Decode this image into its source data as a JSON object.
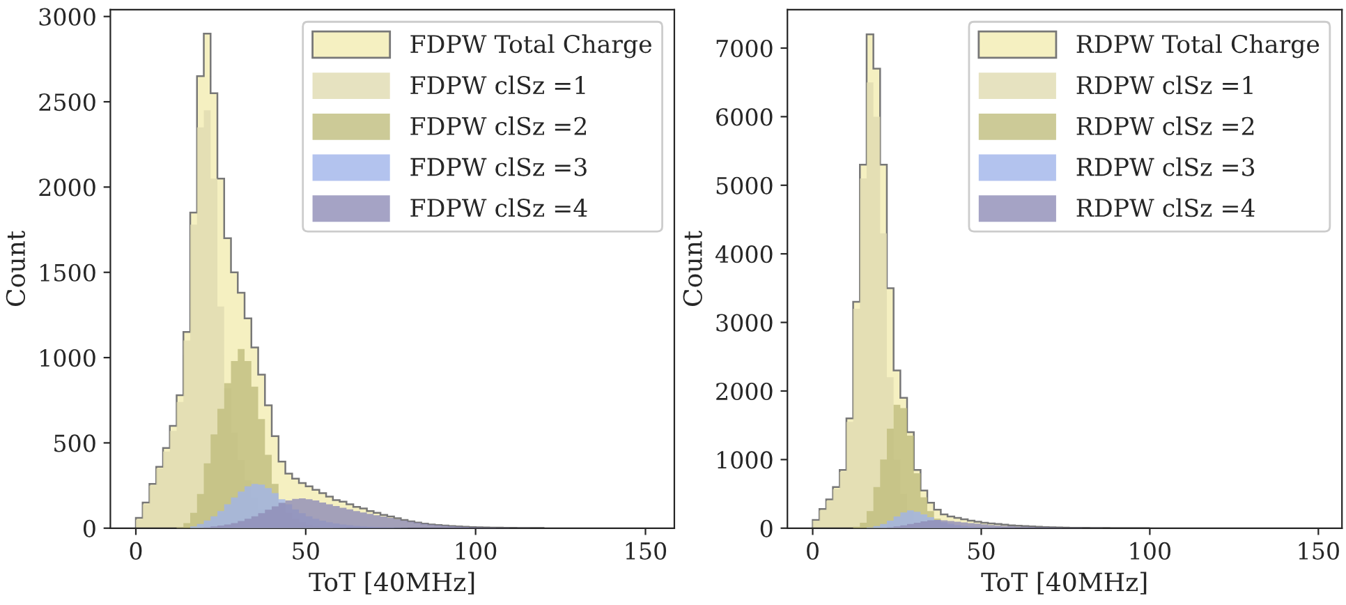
{
  "chart_data": [
    {
      "type": "histogram",
      "xlabel": "ToT [40MHz]",
      "ylabel": "Count",
      "xlim": [
        -7.5,
        158.5
      ],
      "ylim": [
        0,
        3040
      ],
      "xticks": [
        0,
        50,
        100,
        150
      ],
      "yticks": [
        0,
        500,
        1000,
        1500,
        2000,
        2500,
        3000
      ],
      "grid": false,
      "legend": "top right",
      "bins": [
        0,
        2,
        4,
        6,
        8,
        10,
        12,
        14,
        16,
        18,
        20,
        22,
        24,
        26,
        28,
        30,
        32,
        34,
        36,
        38,
        40,
        42,
        44,
        46,
        48,
        50,
        52,
        54,
        56,
        58,
        60,
        62,
        64,
        66,
        68,
        70,
        72,
        74,
        76,
        78,
        80,
        82,
        84,
        86,
        88,
        90,
        92,
        94,
        96,
        98,
        100,
        102,
        104,
        106,
        108,
        110,
        112,
        114,
        116,
        118,
        120
      ],
      "series": [
        {
          "name": "FDPW Total Charge",
          "color": "#f5f0c1",
          "values": [
            60,
            150,
            260,
            360,
            470,
            600,
            780,
            1150,
            1850,
            2650,
            2900,
            2550,
            2050,
            1700,
            1500,
            1380,
            1230,
            1060,
            900,
            720,
            540,
            390,
            320,
            290,
            265,
            245,
            225,
            205,
            185,
            165,
            155,
            140,
            125,
            115,
            100,
            90,
            78,
            68,
            58,
            48,
            40,
            33,
            27,
            22,
            18,
            15,
            12,
            10,
            8,
            6,
            5,
            4,
            3,
            3,
            2,
            2,
            1,
            1,
            1,
            1
          ]
        },
        {
          "name": "FDPW clSz =1",
          "color": "#e0dbb0",
          "values": [
            50,
            140,
            250,
            350,
            450,
            570,
            740,
            1100,
            1780,
            2350,
            2450,
            2050,
            1300,
            820,
            560,
            400,
            280,
            180,
            110,
            60,
            30,
            15,
            8,
            4,
            2,
            0,
            0,
            0,
            0,
            0,
            0,
            0,
            0,
            0,
            0,
            0,
            0,
            0,
            0,
            0,
            0,
            0,
            0,
            0,
            0,
            0,
            0,
            0,
            0,
            0,
            0,
            0,
            0,
            0,
            0,
            0,
            0,
            0,
            0,
            0
          ]
        },
        {
          "name": "FDPW clSz =2",
          "color": "#bfbd7d",
          "values": [
            0,
            0,
            0,
            0,
            0,
            0,
            5,
            30,
            90,
            200,
            380,
            550,
            700,
            850,
            980,
            1050,
            980,
            830,
            640,
            430,
            260,
            150,
            90,
            55,
            35,
            20,
            12,
            7,
            4,
            2,
            1,
            0,
            0,
            0,
            0,
            0,
            0,
            0,
            0,
            0,
            0,
            0,
            0,
            0,
            0,
            0,
            0,
            0,
            0,
            0,
            0,
            0,
            0,
            0,
            0,
            0,
            0,
            0,
            0,
            0
          ]
        },
        {
          "name": "FDPW clSz =3",
          "color": "#a0b4ea",
          "values": [
            0,
            0,
            0,
            0,
            0,
            0,
            0,
            0,
            10,
            25,
            45,
            70,
            100,
            140,
            180,
            215,
            245,
            260,
            255,
            235,
            205,
            170,
            140,
            110,
            88,
            70,
            55,
            44,
            35,
            28,
            22,
            17,
            13,
            10,
            8,
            6,
            4,
            3,
            2,
            1,
            0,
            0,
            0,
            0,
            0,
            0,
            0,
            0,
            0,
            0,
            0,
            0,
            0,
            0,
            0,
            0,
            0,
            0,
            0,
            0
          ]
        },
        {
          "name": "FDPW clSz =4",
          "color": "#8e8cb7",
          "values": [
            0,
            0,
            0,
            0,
            0,
            0,
            0,
            0,
            0,
            0,
            5,
            10,
            15,
            22,
            30,
            42,
            55,
            70,
            88,
            108,
            128,
            148,
            163,
            172,
            175,
            170,
            162,
            150,
            140,
            130,
            120,
            110,
            100,
            92,
            84,
            76,
            68,
            60,
            52,
            44,
            38,
            32,
            26,
            21,
            17,
            14,
            11,
            9,
            7,
            5,
            4,
            3,
            3,
            2,
            2,
            1,
            1,
            1,
            0,
            0
          ]
        }
      ]
    },
    {
      "type": "histogram",
      "xlabel": "ToT [40MHz]",
      "ylabel": "Count",
      "xlim": [
        -7.5,
        157
      ],
      "ylim": [
        0,
        7560
      ],
      "xticks": [
        0,
        50,
        100,
        150
      ],
      "yticks": [
        0,
        1000,
        2000,
        3000,
        4000,
        5000,
        6000,
        7000
      ],
      "grid": false,
      "legend": "top right",
      "bins": [
        0,
        2,
        4,
        6,
        8,
        10,
        12,
        14,
        16,
        18,
        20,
        22,
        24,
        26,
        28,
        30,
        32,
        34,
        36,
        38,
        40,
        42,
        44,
        46,
        48,
        50,
        52,
        54,
        56,
        58,
        60,
        62,
        64,
        66,
        68,
        70,
        72,
        74,
        76,
        78,
        80,
        82,
        84,
        86,
        88,
        90,
        92,
        94,
        96,
        98,
        100
      ],
      "series": [
        {
          "name": "RDPW Total Charge",
          "color": "#f5f0c1",
          "values": [
            120,
            280,
            420,
            600,
            850,
            1600,
            3300,
            5300,
            7200,
            6700,
            5300,
            3500,
            2300,
            1900,
            1400,
            850,
            550,
            370,
            270,
            200,
            170,
            150,
            130,
            110,
            95,
            80,
            70,
            60,
            50,
            42,
            35,
            30,
            25,
            20,
            16,
            13,
            10,
            8,
            6,
            5,
            4,
            3,
            2,
            2,
            1,
            1,
            1,
            0,
            0,
            0
          ]
        },
        {
          "name": "RDPW clSz =1",
          "color": "#e0dbb0",
          "values": [
            110,
            260,
            400,
            570,
            820,
            1550,
            3200,
            5100,
            6500,
            6000,
            4300,
            2200,
            1000,
            500,
            250,
            120,
            60,
            30,
            15,
            8,
            4,
            2,
            1,
            0,
            0,
            0,
            0,
            0,
            0,
            0,
            0,
            0,
            0,
            0,
            0,
            0,
            0,
            0,
            0,
            0,
            0,
            0,
            0,
            0,
            0,
            0,
            0,
            0,
            0,
            0
          ]
        },
        {
          "name": "RDPW clSz =2",
          "color": "#bfbd7d",
          "values": [
            0,
            0,
            0,
            0,
            0,
            0,
            20,
            80,
            250,
            600,
            1000,
            1450,
            1800,
            1750,
            1350,
            800,
            450,
            250,
            140,
            80,
            45,
            25,
            14,
            8,
            4,
            2,
            1,
            0,
            0,
            0,
            0,
            0,
            0,
            0,
            0,
            0,
            0,
            0,
            0,
            0,
            0,
            0,
            0,
            0,
            0,
            0,
            0,
            0,
            0,
            0
          ]
        },
        {
          "name": "RDPW clSz =3",
          "color": "#a0b4ea",
          "values": [
            0,
            0,
            0,
            0,
            0,
            0,
            0,
            0,
            10,
            30,
            60,
            110,
            170,
            230,
            260,
            240,
            200,
            160,
            120,
            90,
            65,
            45,
            32,
            22,
            15,
            10,
            7,
            5,
            3,
            2,
            1,
            0,
            0,
            0,
            0,
            0,
            0,
            0,
            0,
            0,
            0,
            0,
            0,
            0,
            0,
            0,
            0,
            0,
            0,
            0
          ]
        },
        {
          "name": "RDPW clSz =4",
          "color": "#8e8cb7",
          "values": [
            0,
            0,
            0,
            0,
            0,
            0,
            0,
            0,
            0,
            0,
            5,
            12,
            25,
            40,
            60,
            80,
            100,
            115,
            120,
            115,
            105,
            95,
            85,
            75,
            65,
            55,
            47,
            40,
            34,
            29,
            24,
            20,
            17,
            14,
            12,
            10,
            8,
            6,
            5,
            4,
            3,
            2,
            2,
            1,
            1,
            1,
            0,
            0,
            0,
            0
          ]
        }
      ]
    }
  ]
}
